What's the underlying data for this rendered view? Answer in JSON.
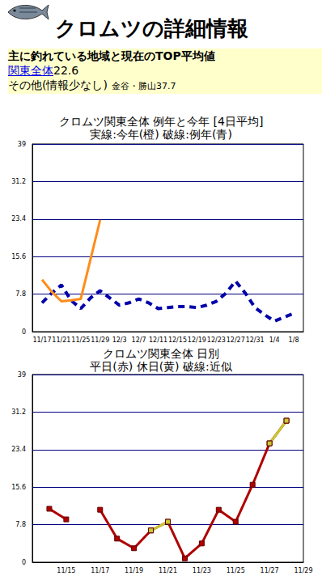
{
  "header": {
    "title": "クロムツの詳細情報"
  },
  "summary": {
    "heading": "主に釣れている地域と現在のTOP平均値",
    "main": {
      "area": "関東全体",
      "value": 22.6
    },
    "other": {
      "label": "その他(情報少なし)",
      "area": "金谷・勝山",
      "value": 37.7
    }
  },
  "chart_data": [
    {
      "type": "line",
      "title": "クロムツ関東全体 例年と今年 [4日平均]",
      "subtitle": "実線:今年(橙) 破線:例年(青)",
      "categories": [
        null,
        "11/17",
        null,
        "11/21",
        null,
        "11/25",
        null,
        "11/29",
        null,
        "12/3",
        null,
        "12/7",
        null,
        "12/11",
        null,
        "12/15",
        null,
        "12/19",
        null,
        "12/23",
        null,
        "12/27",
        null,
        "12/31",
        null,
        "1/4",
        null,
        "1/8",
        null
      ],
      "series": [
        {
          "name": "例年",
          "color": "#0000aa",
          "line_style": "dashed",
          "marker": "none",
          "values": [
            null,
            6.0,
            8.0,
            9.7,
            6.5,
            4.8,
            7.0,
            8.5,
            7.0,
            5.5,
            6.0,
            6.8,
            6.0,
            4.8,
            5.0,
            5.2,
            5.2,
            5.0,
            5.5,
            6.3,
            8.0,
            10.5,
            8.0,
            5.0,
            3.5,
            2.2,
            3.0,
            3.8,
            null
          ]
        },
        {
          "name": "今年",
          "color": "#ff8c1a",
          "line_style": "solid",
          "marker": "none",
          "values": [
            null,
            10.8,
            8.3,
            6.3,
            6.5,
            6.8,
            15.0,
            23.2,
            null,
            null,
            null,
            null,
            null,
            null,
            null,
            null,
            null,
            null,
            null,
            null,
            null,
            null,
            null,
            null,
            null,
            null,
            null,
            null,
            null
          ]
        }
      ],
      "ylim": [
        0,
        39
      ],
      "yticks": [
        0,
        7.8,
        15.6,
        23.4,
        31.2,
        39
      ],
      "grid": true
    },
    {
      "type": "line",
      "title": "クロムツ関東全体 日別",
      "subtitle": "平日(赤) 休日(黄) 破線:近似",
      "categories": [
        null,
        null,
        "11/15",
        null,
        "11/17",
        null,
        "11/19",
        null,
        "11/21",
        null,
        "11/23",
        null,
        "11/25",
        null,
        "11/27",
        null,
        "11/29"
      ],
      "series": [
        {
          "name": "平日",
          "color": "#b00000",
          "line_style": "solid",
          "marker": "square",
          "values": [
            null,
            11.1,
            8.9,
            null,
            10.9,
            4.9,
            2.9,
            6.6,
            8.4,
            0.8,
            3.9,
            10.9,
            8.4,
            16.1,
            24.7,
            29.4,
            null
          ]
        },
        {
          "name": "休日",
          "color": "#c8c832",
          "line_style": "solid",
          "marker": "square",
          "values": [
            null,
            null,
            null,
            null,
            null,
            null,
            null,
            6.6,
            8.4,
            null,
            null,
            null,
            null,
            null,
            24.7,
            29.4,
            null
          ]
        }
      ],
      "ylim": [
        0,
        39
      ],
      "yticks": [
        0,
        7.8,
        15.6,
        23.4,
        31.2,
        39
      ],
      "grid": true
    }
  ]
}
